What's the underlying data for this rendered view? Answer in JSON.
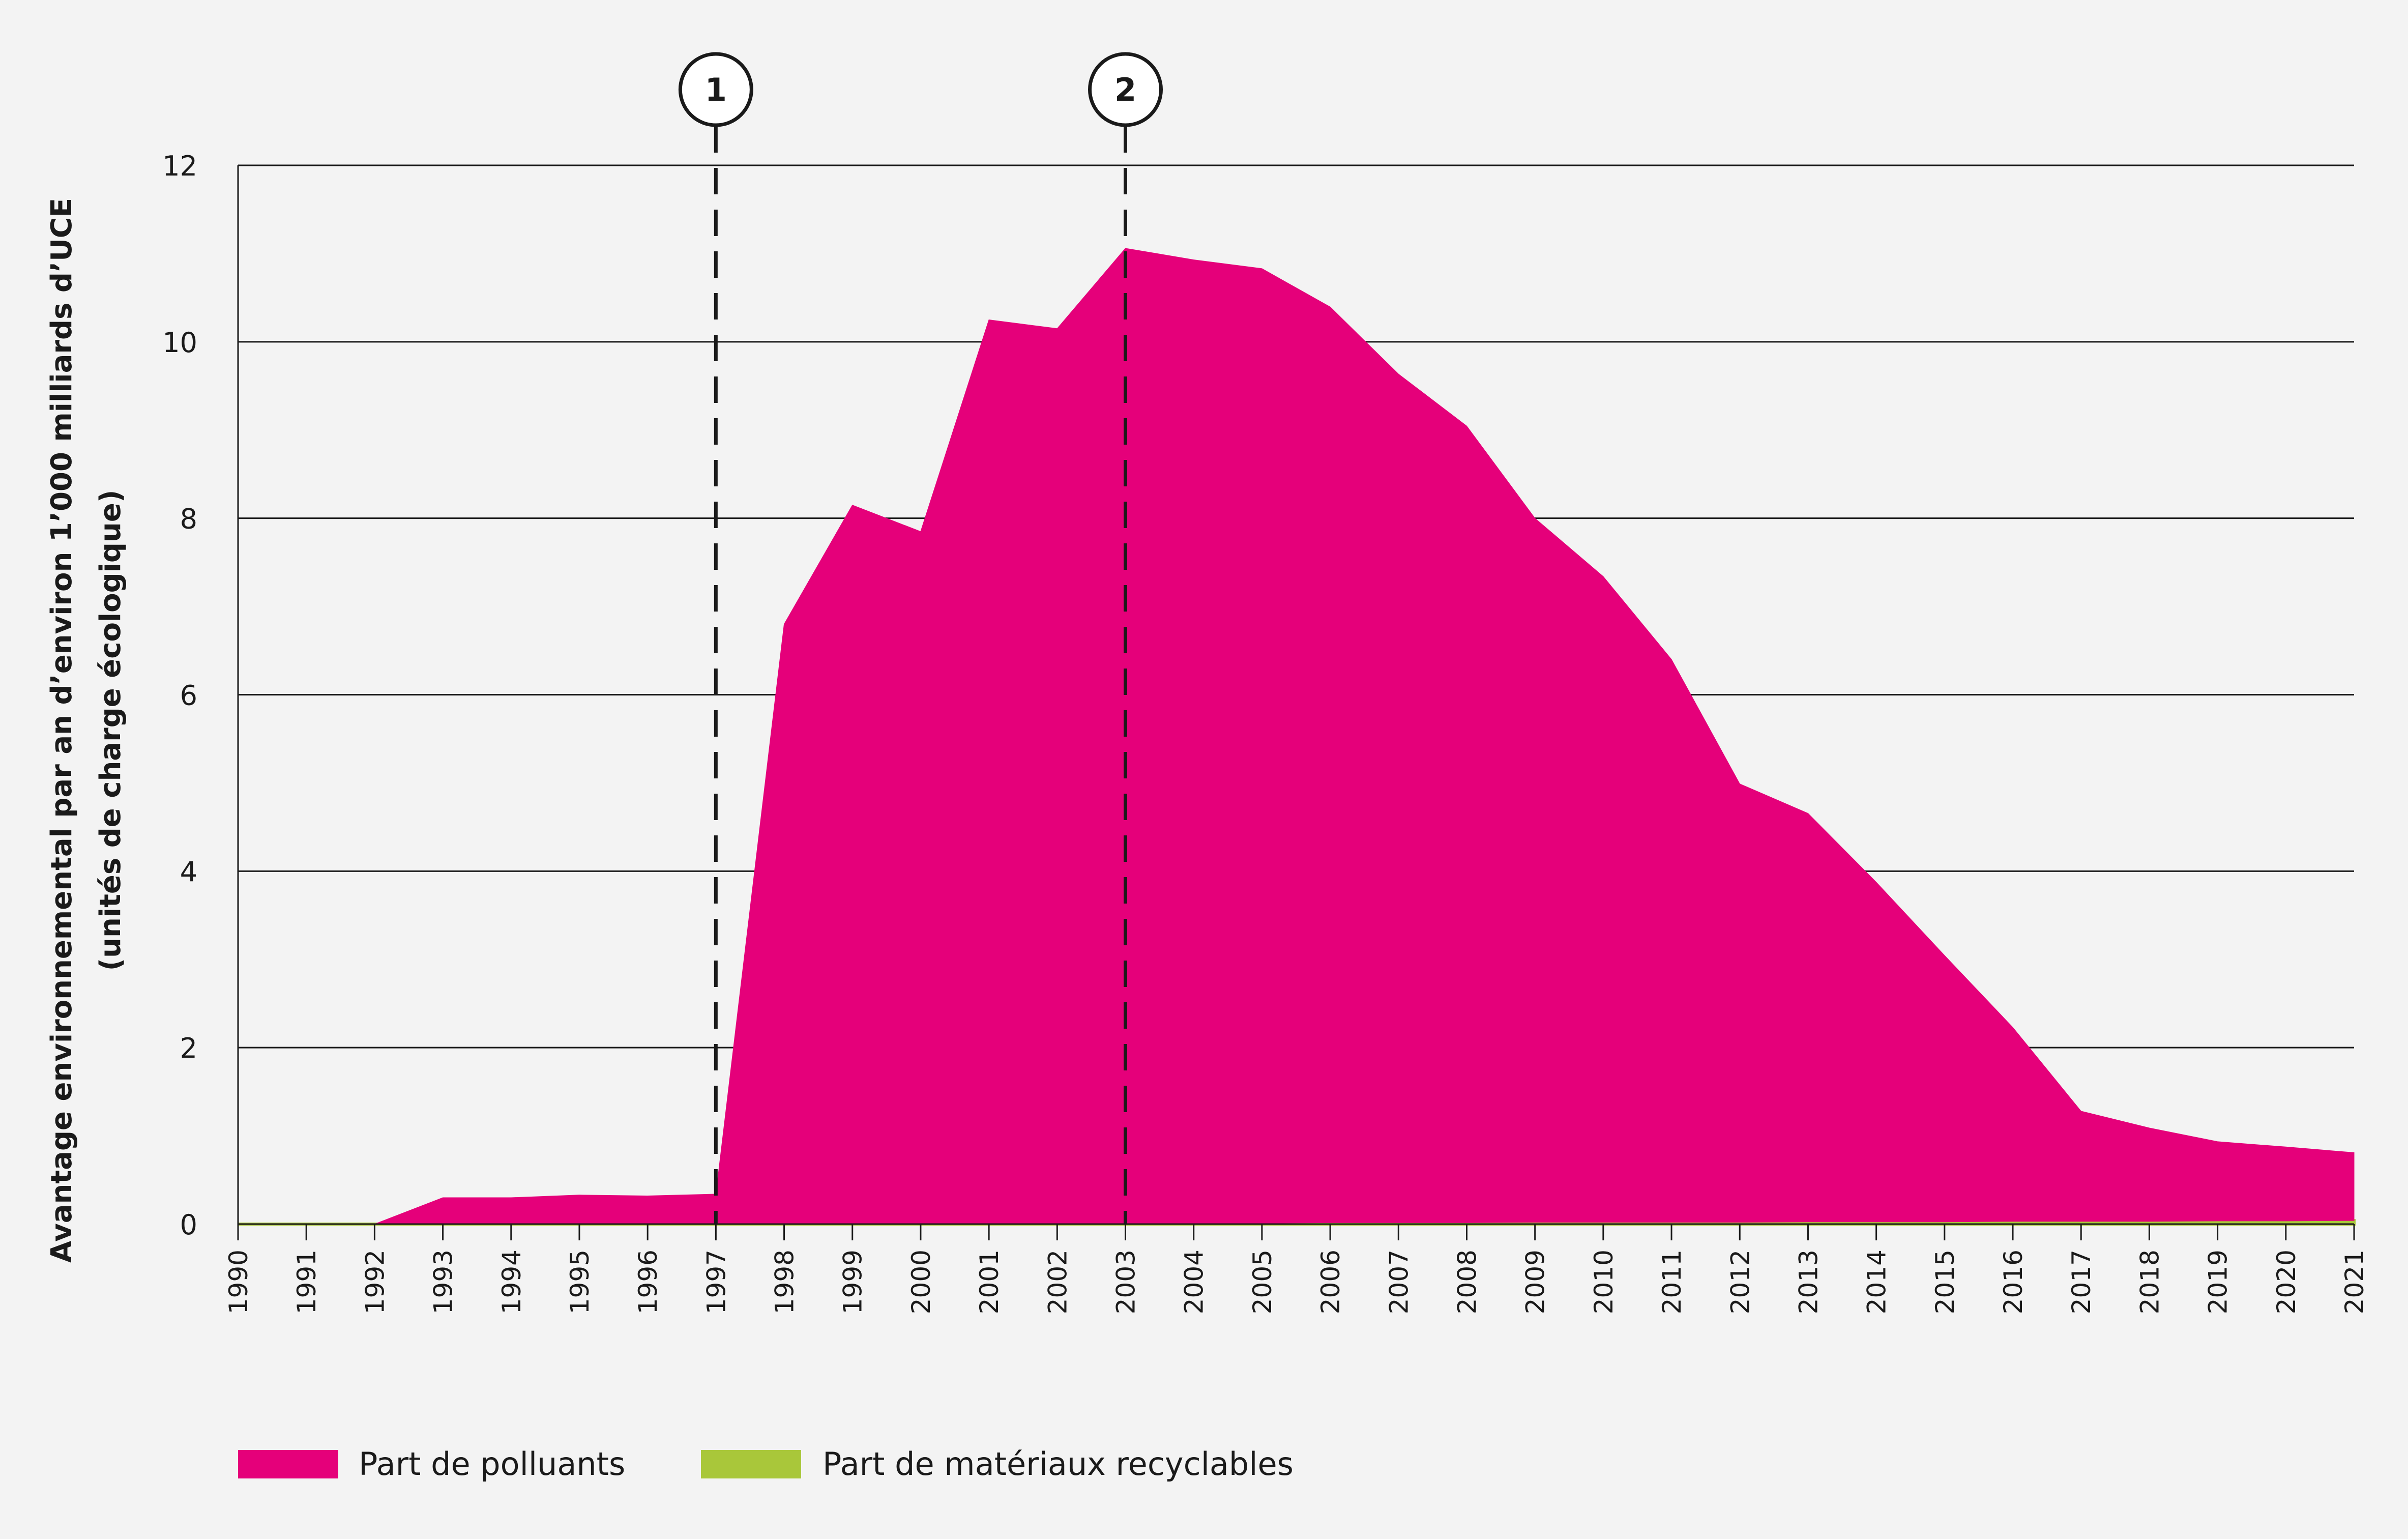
{
  "chart_data": {
    "type": "area",
    "title": "",
    "xlabel": "",
    "ylabel_lines": [
      "Avantage environnemental par an d’environ 1’000 milliards d’UCE",
      "(unités de charge écologique)"
    ],
    "ylim": [
      0,
      12
    ],
    "yticks": [
      "0",
      "2",
      "4",
      "6",
      "8",
      "10",
      "12"
    ],
    "grid": "horizontal",
    "stacked": true,
    "x": [
      1990,
      1991,
      1992,
      1993,
      1994,
      1995,
      1996,
      1997,
      1998,
      1999,
      2000,
      2001,
      2002,
      2003,
      2004,
      2005,
      2006,
      2007,
      2008,
      2009,
      2010,
      2011,
      2012,
      2013,
      2014,
      2015,
      2016,
      2017,
      2018,
      2019,
      2020,
      2021
    ],
    "xtick_labels": [
      "1990",
      "1991",
      "1992",
      "1993",
      "1994",
      "1995",
      "1996",
      "1997",
      "1998",
      "1999",
      "2000",
      "2001",
      "2002",
      "2003",
      "2004",
      "2005",
      "2006",
      "2007",
      "2008",
      "2009",
      "2010",
      "2011",
      "2012",
      "2013",
      "2014",
      "2015",
      "2016",
      "2017",
      "2018",
      "2019",
      "2020",
      "2021"
    ],
    "series": [
      {
        "name": "Part de matériaux recyclables",
        "color": "#a9c73a",
        "values": [
          0,
          0,
          0,
          0,
          0,
          0,
          0,
          0,
          0,
          0,
          0,
          0,
          0,
          0.01,
          0.01,
          0.01,
          0.015,
          0.015,
          0.015,
          0.02,
          0.02,
          0.02,
          0.02,
          0.025,
          0.025,
          0.025,
          0.03,
          0.03,
          0.03,
          0.035,
          0.035,
          0.04
        ]
      },
      {
        "name": "Part de polluants",
        "color": "#e5007a",
        "values": [
          0,
          0,
          0,
          0.3,
          0.3,
          0.33,
          0.32,
          0.34,
          6.8,
          8.15,
          7.85,
          10.25,
          10.15,
          11.05,
          10.92,
          10.82,
          10.38,
          9.62,
          9.03,
          7.98,
          7.32,
          6.38,
          4.97,
          4.63,
          3.85,
          3.02,
          2.2,
          1.25,
          1.06,
          0.9,
          0.84,
          0.77
        ]
      }
    ],
    "markers": [
      {
        "label": "1",
        "x": 1997
      },
      {
        "label": "2",
        "x": 2003
      }
    ],
    "legend": [
      {
        "name": "Part de polluants",
        "color": "#e5007a"
      },
      {
        "name": "Part de matériaux recyclables",
        "color": "#a9c73a"
      }
    ],
    "legend_position": "bottom-left"
  }
}
